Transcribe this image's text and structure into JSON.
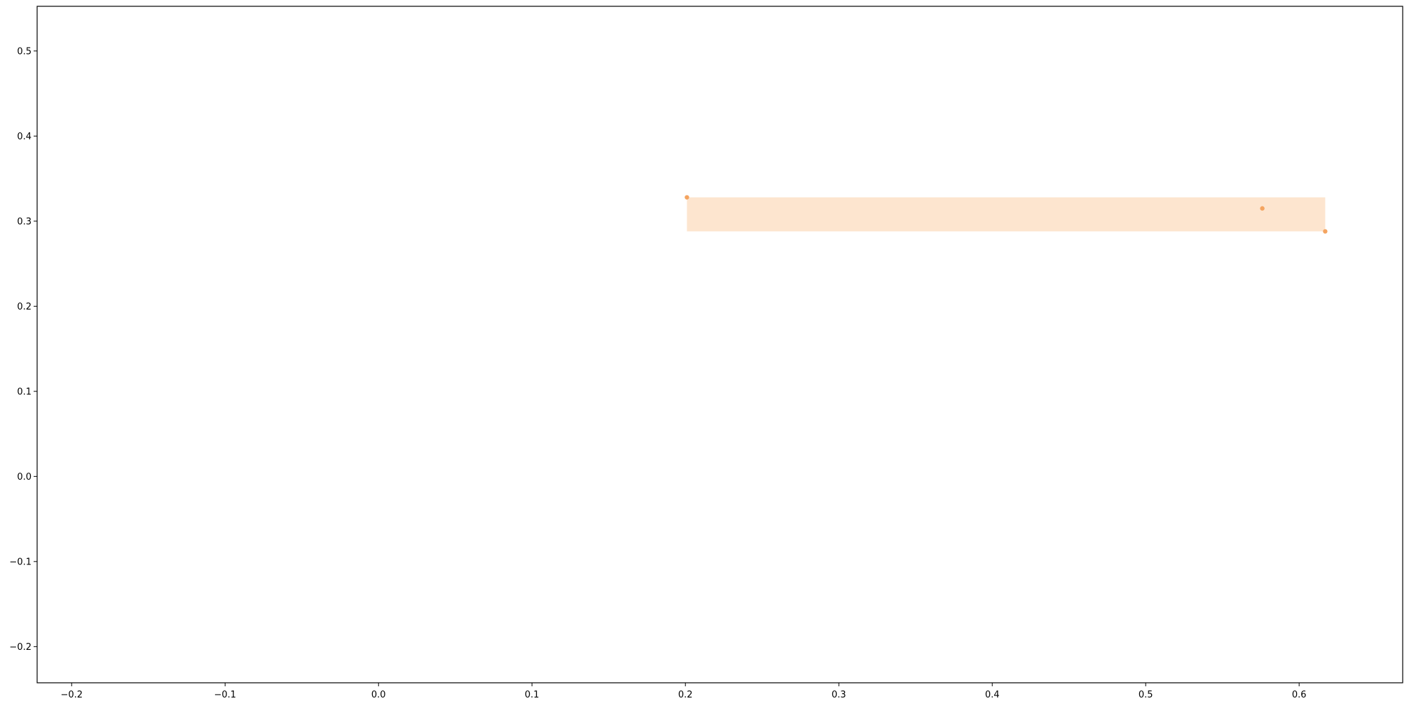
{
  "chart_data": {
    "type": "scatter",
    "title": "",
    "xlabel": "",
    "ylabel": "",
    "xlim": [
      -0.2225,
      0.6675
    ],
    "ylim": [
      -0.2425,
      0.5525
    ],
    "x_ticks": [
      -0.2,
      -0.1,
      0.0,
      0.1,
      0.2,
      0.3,
      0.4,
      0.5,
      0.6
    ],
    "x_tick_labels": [
      "−0.2",
      "−0.1",
      "0.0",
      "0.1",
      "0.2",
      "0.3",
      "0.4",
      "0.5",
      "0.6"
    ],
    "y_ticks": [
      -0.2,
      -0.1,
      0.0,
      0.1,
      0.2,
      0.3,
      0.4,
      0.5
    ],
    "y_tick_labels": [
      "−0.2",
      "−0.1",
      "0.0",
      "0.1",
      "0.2",
      "0.3",
      "0.4",
      "0.5"
    ],
    "grid": false,
    "series": [
      {
        "points": [
          {
            "x": 0.201,
            "y": 0.328
          },
          {
            "x": 0.576,
            "y": 0.315
          },
          {
            "x": 0.617,
            "y": 0.288
          }
        ],
        "color": "#f4a460"
      }
    ],
    "regions": [
      {
        "x0": 0.201,
        "x1": 0.617,
        "y0": 0.288,
        "y1": 0.328,
        "color": "#fde5cf"
      }
    ]
  }
}
